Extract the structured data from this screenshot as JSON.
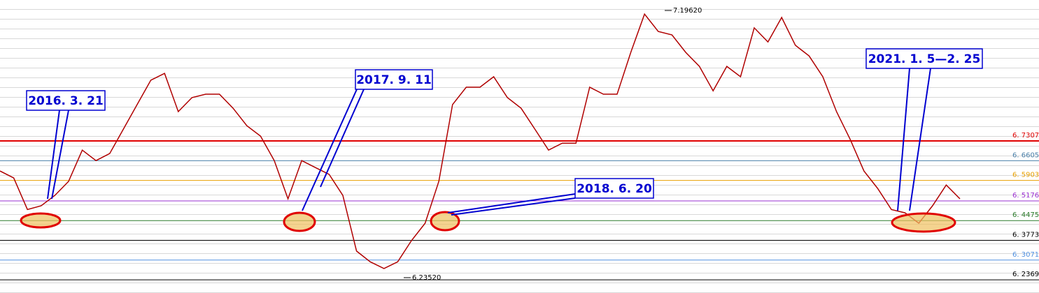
{
  "chart_data": {
    "type": "line",
    "series": [
      {
        "name": null,
        "color": "#b00000",
        "values": [
          6.624,
          6.599,
          6.487,
          6.5,
          6.537,
          6.587,
          6.698,
          6.661,
          6.686,
          6.773,
          6.86,
          6.947,
          6.971,
          6.835,
          6.885,
          6.897,
          6.897,
          6.847,
          6.785,
          6.748,
          6.661,
          6.525,
          6.661,
          6.636,
          6.612,
          6.537,
          6.339,
          6.301,
          6.277,
          6.301,
          6.376,
          6.438,
          6.587,
          6.86,
          6.922,
          6.922,
          6.959,
          6.885,
          6.847,
          6.773,
          6.698,
          6.723,
          6.723,
          6.922,
          6.897,
          6.897,
          7.046,
          7.182,
          7.12,
          7.108,
          7.046,
          6.996,
          6.909,
          6.996,
          6.959,
          7.133,
          7.083,
          7.17,
          7.071,
          7.033,
          6.959,
          6.835,
          6.736,
          6.624,
          6.562,
          6.487,
          6.475,
          6.438,
          6.5,
          6.574,
          6.525
        ]
      }
    ],
    "ylim": [
      6.19,
      7.232
    ],
    "yticks": [
      {
        "value": 6.7307,
        "label": "6. 7307"
      },
      {
        "value": 6.6605,
        "label": "6. 6605"
      },
      {
        "value": 6.5903,
        "label": "6. 5903"
      },
      {
        "value": 6.5176,
        "label": "6. 5176"
      },
      {
        "value": 6.4475,
        "label": "6. 4475"
      },
      {
        "value": 6.3773,
        "label": "6. 3773"
      },
      {
        "value": 6.3071,
        "label": "6. 3071"
      },
      {
        "value": 6.2369,
        "label": "6. 2369"
      }
    ],
    "ytick_colors": [
      "#e00000",
      "#4a7fa8",
      "#e8a000",
      "#9a30d0",
      "#2a7a2a",
      "#000000",
      "#5090e0",
      "#000000"
    ],
    "max_label": "7.19620",
    "min_label": "6.23520",
    "annotations": [
      "2016. 3. 21",
      "2017. 9. 11",
      "2018. 6. 20",
      "2021. 1. 5—2. 25"
    ]
  }
}
